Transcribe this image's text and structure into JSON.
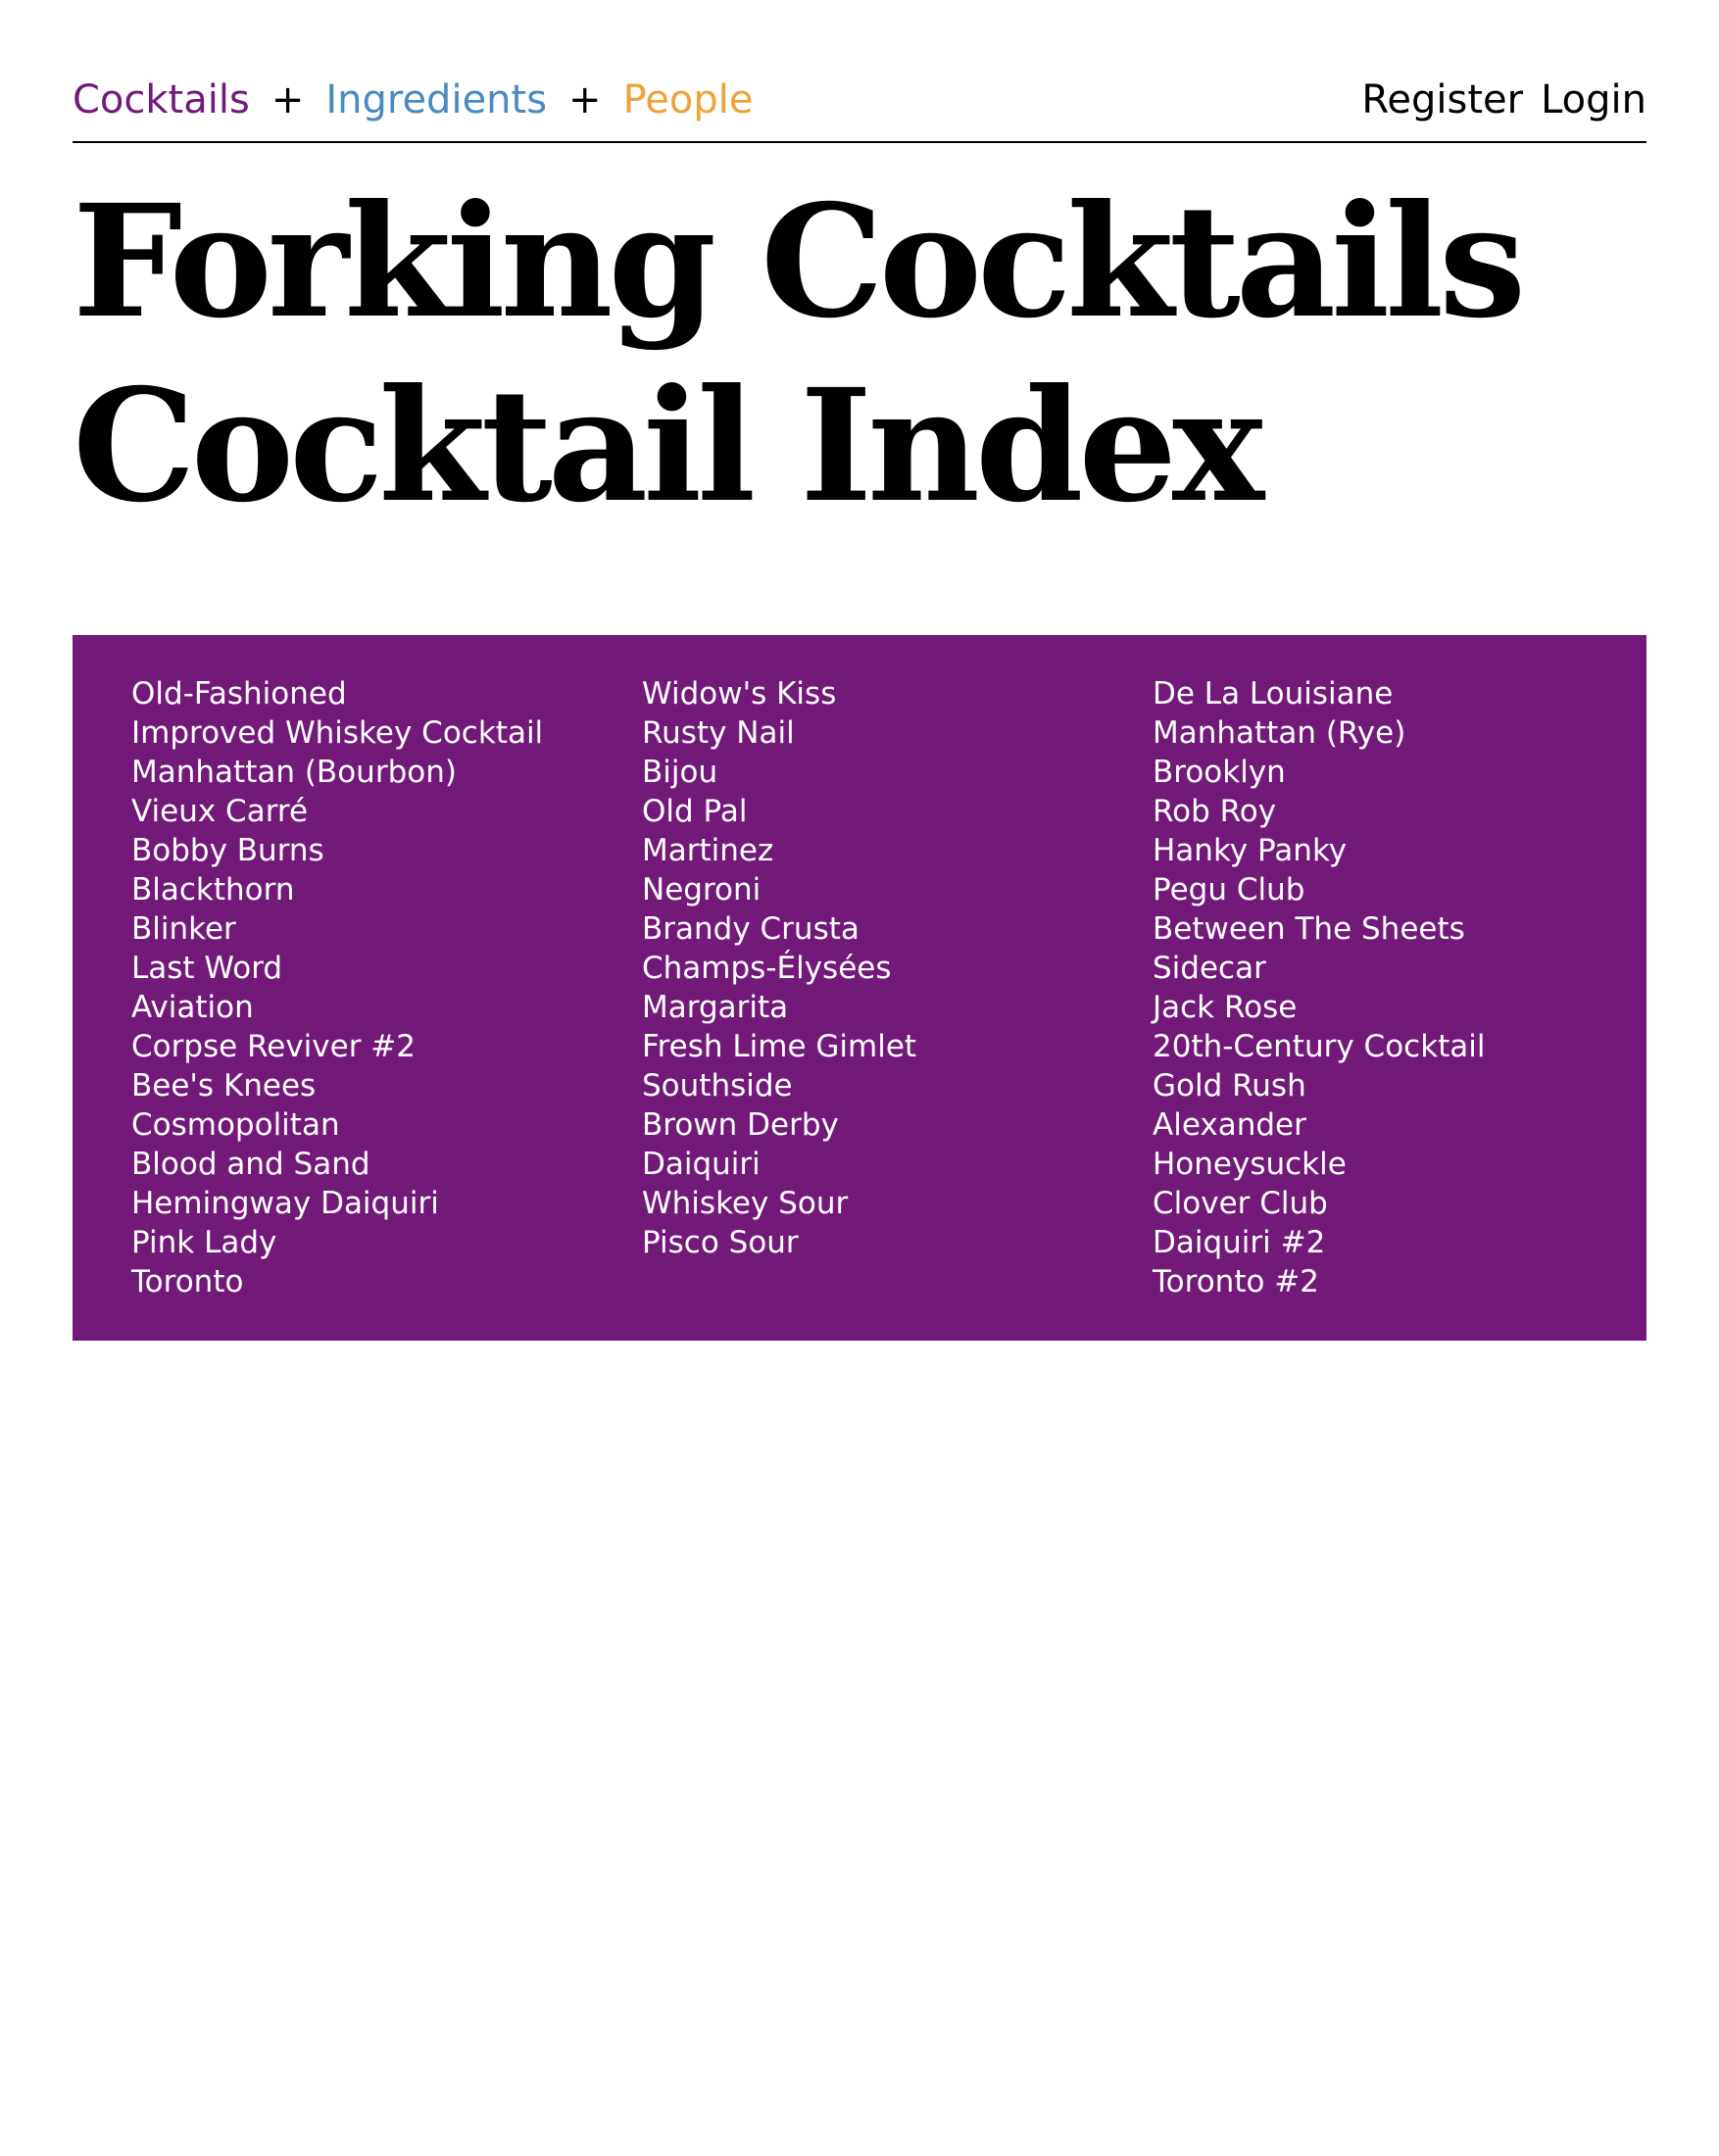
{
  "colors": {
    "cocktails": "#72197a",
    "ingredients": "#4a8ac0",
    "people": "#eea33a",
    "panel_background": "#72197a",
    "panel_text": "#ffffff"
  },
  "nav": {
    "cocktails": "Cocktails",
    "ingredients": "Ingredients",
    "people": "People",
    "separator": "+",
    "register": "Register",
    "login": "Login"
  },
  "title": {
    "line1": "Forking Cocktails",
    "line2": "Cocktail Index"
  },
  "index": {
    "columns": [
      [
        "Old-Fashioned",
        "Improved Whiskey Cocktail",
        "Manhattan (Bourbon)",
        "Vieux Carré",
        "Bobby Burns",
        "Blackthorn",
        "Blinker",
        "Last Word",
        "Aviation",
        "Corpse Reviver #2",
        "Bee's Knees",
        "Cosmopolitan",
        "Blood and Sand",
        "Hemingway Daiquiri",
        "Pink Lady",
        "Toronto"
      ],
      [
        "Widow's Kiss",
        "Rusty Nail",
        "Bijou",
        "Old Pal",
        "Martinez",
        "Negroni",
        "Brandy Crusta",
        "Champs-Élysées",
        "Margarita",
        "Fresh Lime Gimlet",
        "Southside",
        "Brown Derby",
        "Daiquiri",
        "Whiskey Sour",
        "Pisco Sour"
      ],
      [
        "De La Louisiane",
        "Manhattan (Rye)",
        "Brooklyn",
        "Rob Roy",
        "Hanky Panky",
        "Pegu Club",
        "Between The Sheets",
        "Sidecar",
        "Jack Rose",
        "20th-Century Cocktail",
        "Gold Rush",
        "Alexander",
        "Honeysuckle",
        "Clover Club",
        "Daiquiri #2",
        "Toronto #2"
      ]
    ]
  }
}
